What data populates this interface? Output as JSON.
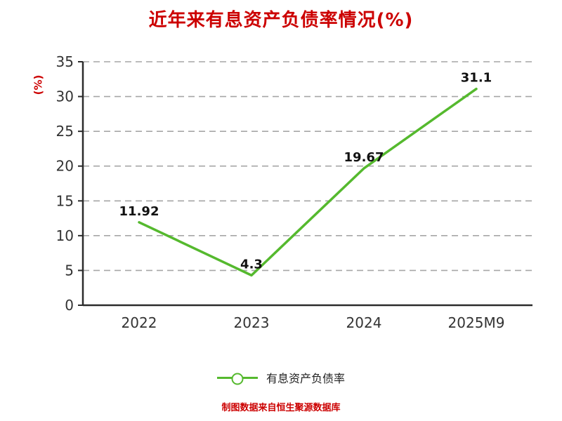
{
  "title": "近年来有息资产负债率情况(%)",
  "footer": "制图数据来自恒生聚源数据库",
  "colors": {
    "line": "#55b92e",
    "title": "#cc0000",
    "footer": "#cc0000",
    "ylabel": "#cc0000",
    "axis": "#2b2b2b",
    "grid": "#a6a6a6",
    "tick": "#333333",
    "label": "#111111"
  },
  "chart_data": {
    "type": "line",
    "title": "近年来有息资产负债率情况(%)",
    "categories": [
      "2022",
      "2023",
      "2024",
      "2025M9"
    ],
    "values": [
      11.92,
      4.3,
      19.67,
      31.1
    ],
    "labels": [
      "11.92",
      "4.3",
      "19.67",
      "31.1"
    ],
    "xlabel": "",
    "ylabel": "(%)",
    "ylim": [
      0,
      35
    ],
    "yticks": [
      0,
      5,
      10,
      15,
      20,
      25,
      30,
      35
    ],
    "grid": "dashed-horizontal",
    "legend": [
      "有息资产负债率"
    ],
    "legend_position": "bottom",
    "marker": "circle-open"
  }
}
